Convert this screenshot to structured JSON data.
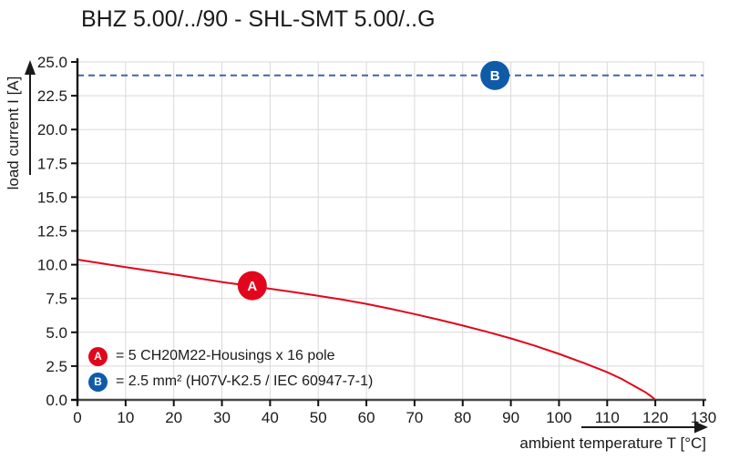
{
  "title": "BHZ 5.00/../90 - SHL-SMT 5.00/..G",
  "colors": {
    "curve_red": "#e2061c",
    "marker_red": "#e2061c",
    "marker_blue": "#0f5ba8",
    "limit_blue": "#4264a8",
    "grid": "#d9d9d9",
    "x_axis": "#474747",
    "y_axis": "#111111",
    "text": "#1a1a1a"
  },
  "chart_data": {
    "type": "line",
    "title": "BHZ 5.00/../90 - SHL-SMT 5.00/..G",
    "xlabel": "ambient temperature T [°C]",
    "ylabel": "load current I [A]",
    "xlim": [
      0,
      130
    ],
    "ylim": [
      0,
      25
    ],
    "x_ticks": [
      0,
      10,
      20,
      30,
      40,
      50,
      60,
      70,
      80,
      90,
      100,
      110,
      120,
      130
    ],
    "y_ticks": [
      0.0,
      2.5,
      5.0,
      7.5,
      10.0,
      12.5,
      15.0,
      17.5,
      20.0,
      22.5,
      25.0
    ],
    "grid": true,
    "legend_position": "lower-left",
    "series": [
      {
        "name": "A",
        "label": "= 5 CH20M22-Housings x 16 pole",
        "style": "solid",
        "points": [
          [
            0,
            10.38
          ],
          [
            5,
            10.1
          ],
          [
            10,
            9.82
          ],
          [
            15,
            9.55
          ],
          [
            20,
            9.28
          ],
          [
            25,
            9.0
          ],
          [
            30,
            8.72
          ],
          [
            35,
            8.47
          ],
          [
            40,
            8.22
          ],
          [
            45,
            7.97
          ],
          [
            50,
            7.7
          ],
          [
            55,
            7.42
          ],
          [
            60,
            7.1
          ],
          [
            65,
            6.74
          ],
          [
            70,
            6.35
          ],
          [
            75,
            5.94
          ],
          [
            80,
            5.5
          ],
          [
            85,
            5.04
          ],
          [
            90,
            4.55
          ],
          [
            95,
            4.0
          ],
          [
            100,
            3.4
          ],
          [
            105,
            2.75
          ],
          [
            110,
            2.05
          ],
          [
            113,
            1.55
          ],
          [
            116,
            0.95
          ],
          [
            118,
            0.55
          ],
          [
            119,
            0.3
          ],
          [
            120,
            0
          ]
        ],
        "marker": {
          "letter": "A",
          "x": 36.3,
          "y": 8.45
        }
      },
      {
        "name": "B",
        "label": "= 2.5 mm² (H07V-K2.5 / IEC 60947-7-1)",
        "style": "dashed",
        "points": [
          [
            0,
            24
          ],
          [
            130,
            24
          ]
        ],
        "marker": {
          "letter": "B",
          "x": 86.7,
          "y": 24
        }
      }
    ]
  }
}
